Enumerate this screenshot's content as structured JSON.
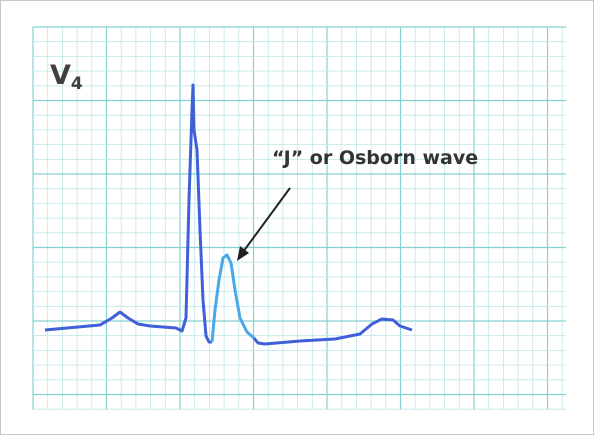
{
  "lead": {
    "letter": "V",
    "subscript": "4"
  },
  "annotation": "“J” or Osborn wave"
}
